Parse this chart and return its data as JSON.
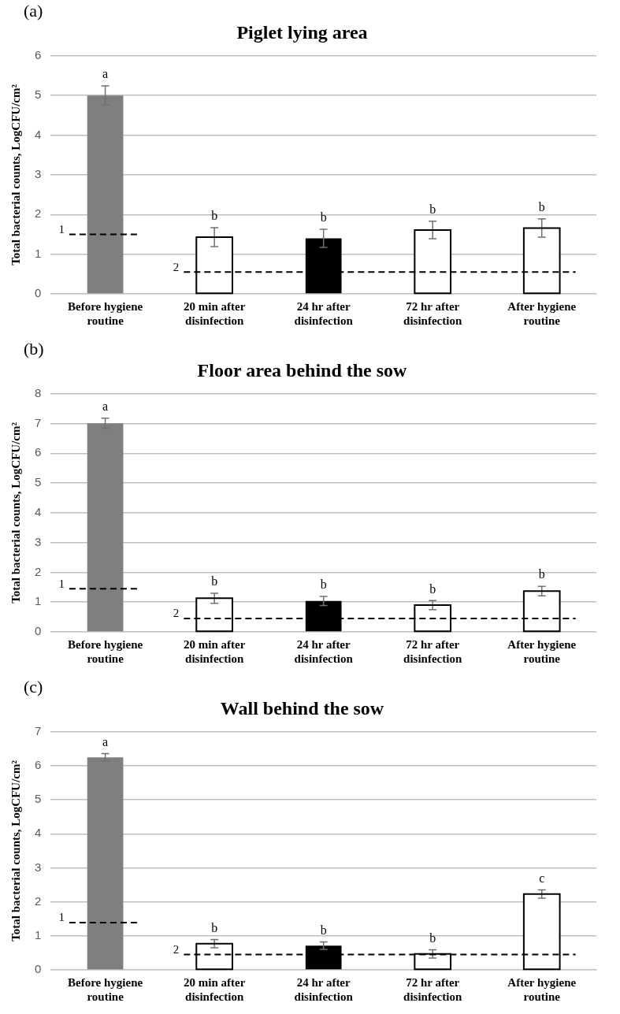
{
  "chart_data": [
    {
      "type": "bar",
      "title": "Piglet lying area",
      "ylabel": "Total bacterial counts, LogCFU/cm²",
      "categories": [
        "Before hygiene routine",
        "20 min after disinfection",
        "24 hr after disinfection",
        "72 hr after disinfection",
        "After hygiene routine"
      ],
      "values": [
        5.0,
        1.43,
        1.4,
        1.61,
        1.66
      ],
      "errors": [
        0.24,
        0.24,
        0.23,
        0.22,
        0.23
      ],
      "colors": [
        "#7f7f7f",
        "#ffffff",
        "#000000",
        "#ffffff",
        "#ffffff"
      ],
      "ylim": [
        0,
        6
      ],
      "yticks": [
        0,
        1,
        2,
        3,
        4,
        5,
        6
      ],
      "grid": "y",
      "legend": false,
      "ref_lines": [
        {
          "axis": "y",
          "value": 1.5,
          "color": "#000000",
          "line_style": "dashed"
        },
        {
          "axis": "y",
          "value": 0.55,
          "color": "#000000",
          "line_style": "dashed"
        }
      ],
      "annotations": [
        "(a)",
        "1",
        "2",
        {
          "text": "a",
          "x": "Before hygiene routine",
          "y": 5.24
        },
        {
          "text": "b",
          "x": "20 min after disinfection",
          "y": 1.67
        },
        {
          "text": "b",
          "x": "24 hr after disinfection",
          "y": 1.63
        },
        {
          "text": "b",
          "x": "72 hr after disinfection",
          "y": 1.83
        },
        {
          "text": "b",
          "x": "After hygiene routine",
          "y": 1.89
        }
      ]
    },
    {
      "type": "bar",
      "title": "Floor area behind the sow",
      "ylabel": "Total bacterial counts, LogCFU/cm²",
      "categories": [
        "Before hygiene routine",
        "20 min after disinfection",
        "24 hr after disinfection",
        "72 hr after disinfection",
        "After hygiene routine"
      ],
      "values": [
        7.01,
        1.13,
        1.04,
        0.9,
        1.37
      ],
      "errors": [
        0.17,
        0.17,
        0.15,
        0.15,
        0.16
      ],
      "colors": [
        "#7f7f7f",
        "#ffffff",
        "#000000",
        "#ffffff",
        "#ffffff"
      ],
      "ylim": [
        0,
        8
      ],
      "yticks": [
        0,
        1,
        2,
        3,
        4,
        5,
        6,
        7,
        8
      ],
      "grid": "y",
      "legend": false,
      "ref_lines": [
        {
          "axis": "y",
          "value": 1.45,
          "color": "#000000",
          "line_style": "dashed"
        },
        {
          "axis": "y",
          "value": 0.45,
          "color": "#000000",
          "line_style": "dashed"
        }
      ],
      "annotations": [
        "(b)",
        "1",
        "2",
        {
          "text": "a",
          "x": "Before hygiene routine",
          "y": 7.18
        },
        {
          "text": "b",
          "x": "20 min after disinfection",
          "y": 1.3
        },
        {
          "text": "b",
          "x": "24 hr after disinfection",
          "y": 1.19
        },
        {
          "text": "b",
          "x": "72 hr after disinfection",
          "y": 1.05
        },
        {
          "text": "b",
          "x": "After hygiene routine",
          "y": 1.53
        }
      ]
    },
    {
      "type": "bar",
      "title": "Wall behind the sow",
      "ylabel": "Total bacterial counts, LogCFU/cm²",
      "categories": [
        "Before hygiene routine",
        "20 min after disinfection",
        "24 hr after disinfection",
        "72 hr after disinfection",
        "After hygiene routine"
      ],
      "values": [
        6.25,
        0.77,
        0.71,
        0.47,
        2.23
      ],
      "errors": [
        0.11,
        0.12,
        0.11,
        0.12,
        0.12
      ],
      "colors": [
        "#7f7f7f",
        "#ffffff",
        "#000000",
        "#ffffff",
        "#ffffff"
      ],
      "ylim": [
        0,
        7
      ],
      "yticks": [
        0,
        1,
        2,
        3,
        4,
        5,
        6,
        7
      ],
      "grid": "y",
      "legend": false,
      "ref_lines": [
        {
          "axis": "y",
          "value": 1.39,
          "color": "#000000",
          "line_style": "dashed"
        },
        {
          "axis": "y",
          "value": 0.45,
          "color": "#000000",
          "line_style": "dashed"
        }
      ],
      "annotations": [
        "(c)",
        "1",
        "2",
        {
          "text": "a",
          "x": "Before hygiene routine",
          "y": 6.36
        },
        {
          "text": "b",
          "x": "20 min after disinfection",
          "y": 0.89
        },
        {
          "text": "b",
          "x": "24 hr after disinfection",
          "y": 0.82
        },
        {
          "text": "b",
          "x": "72 hr after disinfection",
          "y": 0.59
        },
        {
          "text": "c",
          "x": "After hygiene routine",
          "y": 2.35
        }
      ]
    }
  ]
}
